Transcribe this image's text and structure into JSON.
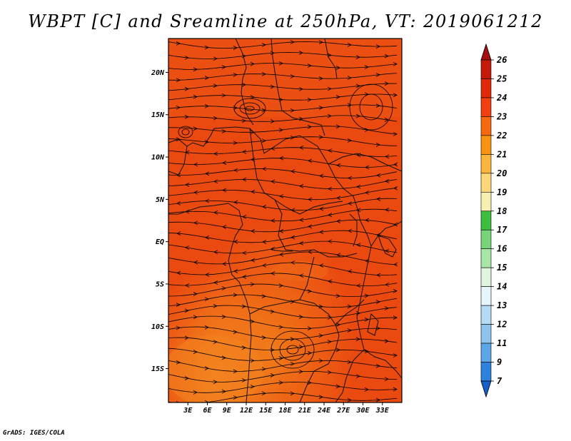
{
  "title": "WBPT [C] and Sreamline at 250hPa, VT: 2019061212",
  "credit": "GrADS: IGES/COLA",
  "map": {
    "variable": "WBPT",
    "unit": "C",
    "level": "250hPa",
    "valid_time": "2019061212",
    "lon_range": [
      0,
      36
    ],
    "lat_range": [
      -19,
      24
    ],
    "x_ticks": [
      {
        "lon": 3,
        "label": "3E"
      },
      {
        "lon": 6,
        "label": "6E"
      },
      {
        "lon": 9,
        "label": "9E"
      },
      {
        "lon": 12,
        "label": "12E"
      },
      {
        "lon": 15,
        "label": "15E"
      },
      {
        "lon": 18,
        "label": "18E"
      },
      {
        "lon": 21,
        "label": "21E"
      },
      {
        "lon": 24,
        "label": "24E"
      },
      {
        "lon": 27,
        "label": "27E"
      },
      {
        "lon": 30,
        "label": "30E"
      },
      {
        "lon": 33,
        "label": "33E"
      }
    ],
    "y_ticks": [
      {
        "lat": 20,
        "label": "20N"
      },
      {
        "lat": 15,
        "label": "15N"
      },
      {
        "lat": 10,
        "label": "10N"
      },
      {
        "lat": 5,
        "label": "5N"
      },
      {
        "lat": 0,
        "label": "EQ"
      },
      {
        "lat": -5,
        "label": "5S"
      },
      {
        "lat": -10,
        "label": "10S"
      },
      {
        "lat": -15,
        "label": "15S"
      }
    ]
  },
  "colorbar": {
    "labels": [
      "26",
      "25",
      "24",
      "23",
      "22",
      "21",
      "20",
      "19",
      "18",
      "17",
      "16",
      "15",
      "14",
      "13",
      "12",
      "11",
      "9",
      "7"
    ],
    "colors": [
      "#a50f0f",
      "#c41a0a",
      "#e0280a",
      "#f04010",
      "#f56a10",
      "#f89210",
      "#fbb43c",
      "#fcd77a",
      "#f8f0b0",
      "#3cbf3c",
      "#78d478",
      "#a8e6a8",
      "#dff5df",
      "#e6f6fb",
      "#b4dcf5",
      "#8cc4ee",
      "#5aa6e6",
      "#2c82dc",
      "#1460c8"
    ]
  }
}
